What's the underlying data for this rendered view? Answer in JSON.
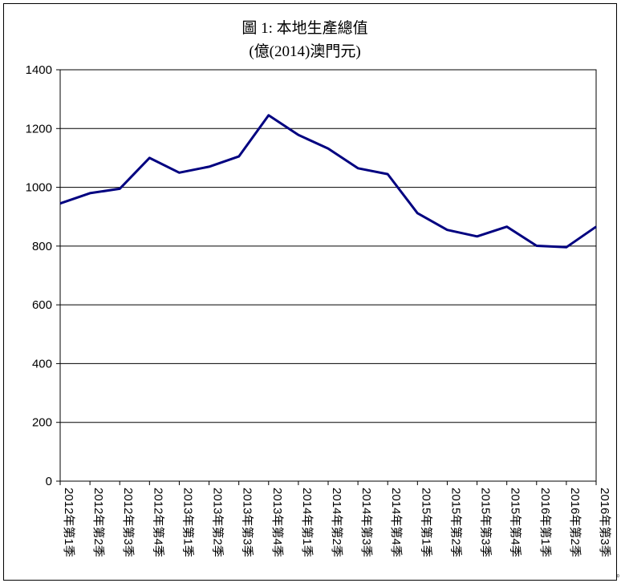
{
  "chart_data": {
    "type": "line",
    "title_line1": "圖 1: 本地生產總值",
    "title_line2": "(億(2014)澳門元)",
    "categories": [
      "2012年第1季",
      "2012年第2季",
      "2012年第3季",
      "2012年第4季",
      "2013年第1季",
      "2013年第2季",
      "2013年第3季",
      "2013年第4季",
      "2014年第1季",
      "2014年第2季",
      "2014年第3季",
      "2014年第4季",
      "2015年第1季",
      "2015年第2季",
      "2015年第3季",
      "2015年第4季",
      "2016年第1季",
      "2016年第2季",
      "2016年第3季"
    ],
    "series": [
      {
        "values": [
          945,
          980,
          995,
          1100,
          1050,
          1070,
          1105,
          1245,
          1178,
          1132,
          1065,
          1045,
          912,
          855,
          833,
          866,
          801,
          796,
          866
        ]
      }
    ],
    "ylim": [
      0,
      1400
    ],
    "yticks": [
      0,
      200,
      400,
      600,
      800,
      1000,
      1200,
      1400
    ],
    "grid": true,
    "line_color": "#000080"
  }
}
